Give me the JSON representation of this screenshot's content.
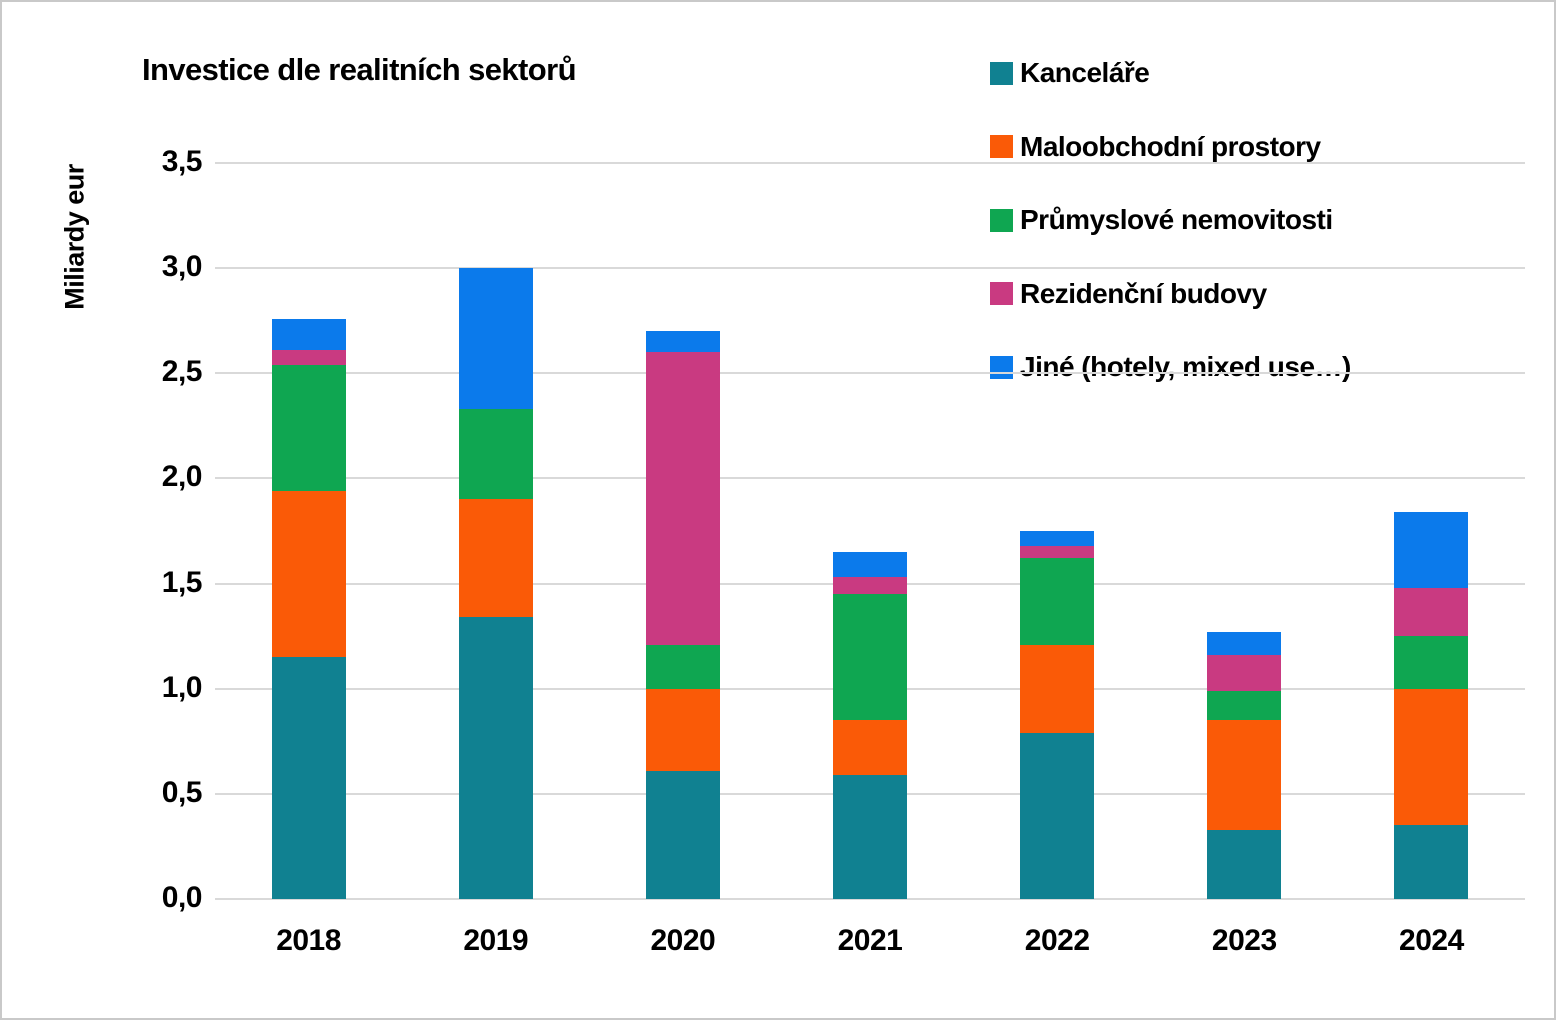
{
  "chart_data": {
    "type": "bar",
    "stacked": true,
    "title": "Investice dle realitních sektorů",
    "ylabel": "Miliardy eur",
    "xlabel": "",
    "ylim": [
      0,
      3.5
    ],
    "grid": "horizontal",
    "gridline_color": "#d9d9d9",
    "legend_position": "top-right",
    "decimal_separator": ",",
    "categories": [
      "2018",
      "2019",
      "2020",
      "2021",
      "2022",
      "2023",
      "2024"
    ],
    "series": [
      {
        "name": "Kanceláře",
        "color": "#108191",
        "values": [
          1.15,
          1.34,
          0.61,
          0.59,
          0.79,
          0.33,
          0.35
        ]
      },
      {
        "name": "Maloobchodní prostory",
        "color": "#fa5a07",
        "values": [
          0.79,
          0.56,
          0.39,
          0.26,
          0.42,
          0.52,
          0.65
        ]
      },
      {
        "name": "Průmyslové nemovitosti",
        "color": "#0fa651",
        "values": [
          0.6,
          0.43,
          0.21,
          0.6,
          0.41,
          0.14,
          0.25
        ]
      },
      {
        "name": "Rezidenční budovy",
        "color": "#c93a81",
        "values": [
          0.07,
          0.0,
          1.39,
          0.08,
          0.06,
          0.17,
          0.23
        ]
      },
      {
        "name": "Jiné (hotely, mixed use…)",
        "color": "#0b7aeb",
        "values": [
          0.15,
          0.67,
          0.1,
          0.12,
          0.07,
          0.11,
          0.36
        ]
      }
    ],
    "totals": [
      2.76,
      3.0,
      2.7,
      1.65,
      1.75,
      1.27,
      1.84
    ],
    "yticks": [
      {
        "value": 0.0,
        "label": "0,0"
      },
      {
        "value": 0.5,
        "label": "0,5"
      },
      {
        "value": 1.0,
        "label": "1,0"
      },
      {
        "value": 1.5,
        "label": "1,5"
      },
      {
        "value": 2.0,
        "label": "2,0"
      },
      {
        "value": 2.5,
        "label": "2,5"
      },
      {
        "value": 3.0,
        "label": "3,0"
      },
      {
        "value": 3.5,
        "label": "3,5"
      }
    ]
  }
}
